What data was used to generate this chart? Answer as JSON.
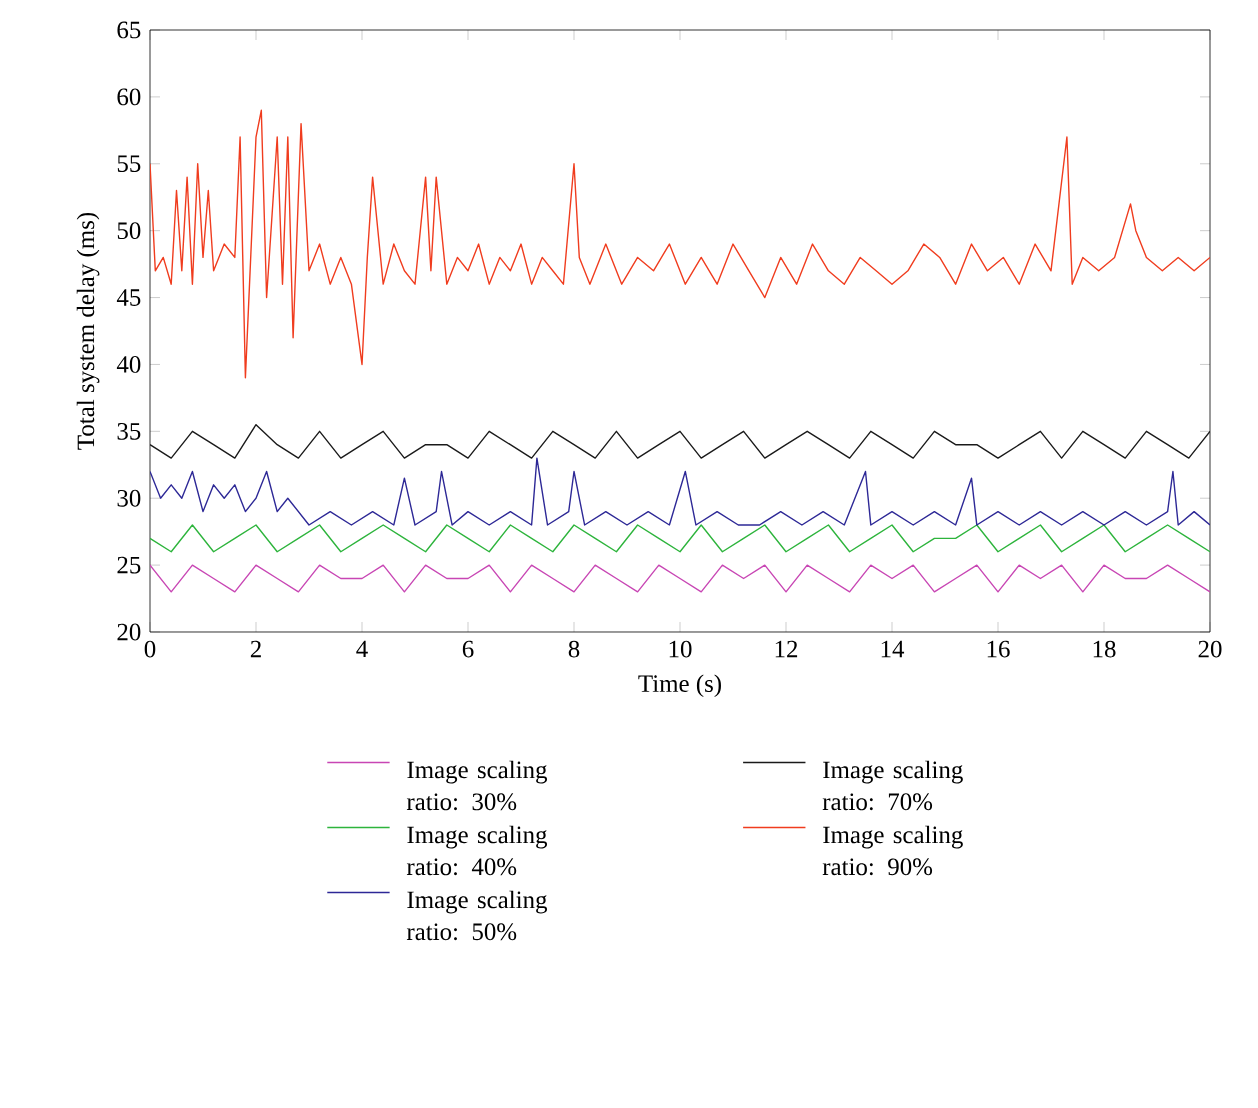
{
  "chart_data": {
    "type": "line",
    "xlabel": "Time (s)",
    "ylabel": "Total system delay (ms)",
    "xlim": [
      0,
      20
    ],
    "ylim": [
      20,
      65
    ],
    "xticks": [
      0,
      2,
      4,
      6,
      8,
      10,
      12,
      14,
      16,
      18,
      20
    ],
    "yticks": [
      20,
      25,
      30,
      35,
      40,
      45,
      50,
      55,
      60,
      65
    ],
    "grid": false,
    "legend": "bottom",
    "series": [
      {
        "name": "Image scaling ratio: 30%",
        "color": "#c846b4",
        "x": [
          0,
          0.4,
          0.8,
          1.2,
          1.6,
          2.0,
          2.4,
          2.8,
          3.2,
          3.6,
          4.0,
          4.4,
          4.8,
          5.2,
          5.6,
          6.0,
          6.4,
          6.8,
          7.2,
          7.6,
          8.0,
          8.4,
          8.8,
          9.2,
          9.6,
          10.0,
          10.4,
          10.8,
          11.2,
          11.6,
          12.0,
          12.4,
          12.8,
          13.2,
          13.6,
          14.0,
          14.4,
          14.8,
          15.2,
          15.6,
          16.0,
          16.4,
          16.8,
          17.2,
          17.6,
          18.0,
          18.4,
          18.8,
          19.2,
          19.6,
          20
        ],
        "values": [
          25,
          23,
          25,
          24,
          23,
          25,
          24,
          23,
          25,
          24,
          24,
          25,
          23,
          25,
          24,
          24,
          25,
          23,
          25,
          24,
          23,
          25,
          24,
          23,
          25,
          24,
          23,
          25,
          24,
          25,
          23,
          25,
          24,
          23,
          25,
          24,
          25,
          23,
          24,
          25,
          23,
          25,
          24,
          25,
          23,
          25,
          24,
          24,
          25,
          24,
          23
        ]
      },
      {
        "name": "Image scaling ratio: 40%",
        "color": "#2db43c",
        "x": [
          0,
          0.4,
          0.8,
          1.2,
          1.6,
          2.0,
          2.4,
          2.8,
          3.2,
          3.6,
          4.0,
          4.4,
          4.8,
          5.2,
          5.6,
          6.0,
          6.4,
          6.8,
          7.2,
          7.6,
          8.0,
          8.4,
          8.8,
          9.2,
          9.6,
          10.0,
          10.4,
          10.8,
          11.2,
          11.6,
          12.0,
          12.4,
          12.8,
          13.2,
          13.6,
          14.0,
          14.4,
          14.8,
          15.2,
          15.6,
          16.0,
          16.4,
          16.8,
          17.2,
          17.6,
          18.0,
          18.4,
          18.8,
          19.2,
          19.6,
          20
        ],
        "values": [
          27,
          26,
          28,
          26,
          27,
          28,
          26,
          27,
          28,
          26,
          27,
          28,
          27,
          26,
          28,
          27,
          26,
          28,
          27,
          26,
          28,
          27,
          26,
          28,
          27,
          26,
          28,
          26,
          27,
          28,
          26,
          27,
          28,
          26,
          27,
          28,
          26,
          27,
          27,
          28,
          26,
          27,
          28,
          26,
          27,
          28,
          26,
          27,
          28,
          27,
          26
        ]
      },
      {
        "name": "Image scaling ratio: 50%",
        "color": "#2d2896",
        "x": [
          0,
          0.2,
          0.4,
          0.6,
          0.8,
          1.0,
          1.2,
          1.4,
          1.6,
          1.8,
          2.0,
          2.2,
          2.4,
          2.6,
          3.0,
          3.4,
          3.8,
          4.2,
          4.6,
          4.8,
          5.0,
          5.4,
          5.5,
          5.7,
          6.0,
          6.4,
          6.8,
          7.2,
          7.3,
          7.5,
          7.9,
          8.0,
          8.2,
          8.6,
          9.0,
          9.4,
          9.8,
          10.1,
          10.3,
          10.7,
          11.1,
          11.5,
          11.9,
          12.3,
          12.7,
          13.1,
          13.5,
          13.6,
          14.0,
          14.4,
          14.8,
          15.2,
          15.5,
          15.6,
          16.0,
          16.4,
          16.8,
          17.2,
          17.6,
          18.0,
          18.4,
          18.8,
          19.2,
          19.3,
          19.4,
          19.7,
          20
        ],
        "values": [
          32,
          30,
          31,
          30,
          32,
          29,
          31,
          30,
          31,
          29,
          30,
          32,
          29,
          30,
          28,
          29,
          28,
          29,
          28,
          31.5,
          28,
          29,
          32,
          28,
          29,
          28,
          29,
          28,
          33,
          28,
          29,
          32,
          28,
          29,
          28,
          29,
          28,
          32,
          28,
          29,
          28,
          28,
          29,
          28,
          29,
          28,
          32,
          28,
          29,
          28,
          29,
          28,
          31.5,
          28,
          29,
          28,
          29,
          28,
          29,
          28,
          29,
          28,
          29,
          32,
          28,
          29,
          28
        ]
      },
      {
        "name": "Image scaling ratio: 70%",
        "color": "#1a1a1a",
        "x": [
          0,
          0.4,
          0.8,
          1.2,
          1.6,
          2.0,
          2.4,
          2.8,
          3.2,
          3.6,
          4.0,
          4.4,
          4.8,
          5.2,
          5.6,
          6.0,
          6.4,
          6.8,
          7.2,
          7.6,
          8.0,
          8.4,
          8.8,
          9.2,
          9.6,
          10.0,
          10.4,
          10.8,
          11.2,
          11.6,
          12.0,
          12.4,
          12.8,
          13.2,
          13.6,
          14.0,
          14.4,
          14.8,
          15.2,
          15.6,
          16.0,
          16.4,
          16.8,
          17.2,
          17.6,
          18.0,
          18.4,
          18.8,
          19.2,
          19.6,
          20
        ],
        "values": [
          34,
          33,
          35,
          34,
          33,
          35.5,
          34,
          33,
          35,
          33,
          34,
          35,
          33,
          34,
          34,
          33,
          35,
          34,
          33,
          35,
          34,
          33,
          35,
          33,
          34,
          35,
          33,
          34,
          35,
          33,
          34,
          35,
          34,
          33,
          35,
          34,
          33,
          35,
          34,
          34,
          33,
          34,
          35,
          33,
          35,
          34,
          33,
          35,
          34,
          33,
          35
        ]
      },
      {
        "name": "Image scaling ratio: 90%",
        "color": "#f03c1e",
        "x": [
          0,
          0.1,
          0.25,
          0.4,
          0.5,
          0.6,
          0.7,
          0.8,
          0.9,
          1.0,
          1.1,
          1.2,
          1.4,
          1.6,
          1.7,
          1.8,
          1.9,
          2.0,
          2.1,
          2.2,
          2.3,
          2.4,
          2.5,
          2.6,
          2.7,
          2.85,
          3.0,
          3.2,
          3.4,
          3.6,
          3.8,
          4.0,
          4.1,
          4.2,
          4.4,
          4.6,
          4.8,
          5.0,
          5.2,
          5.3,
          5.4,
          5.6,
          5.8,
          6.0,
          6.2,
          6.4,
          6.6,
          6.8,
          7.0,
          7.2,
          7.4,
          7.6,
          7.8,
          8.0,
          8.1,
          8.3,
          8.6,
          8.9,
          9.2,
          9.5,
          9.8,
          10.1,
          10.4,
          10.7,
          11.0,
          11.3,
          11.6,
          11.9,
          12.2,
          12.5,
          12.8,
          13.1,
          13.4,
          13.7,
          14.0,
          14.3,
          14.6,
          14.9,
          15.2,
          15.5,
          15.8,
          16.1,
          16.4,
          16.7,
          17.0,
          17.3,
          17.4,
          17.6,
          17.9,
          18.2,
          18.5,
          18.6,
          18.8,
          19.1,
          19.4,
          19.7,
          20
        ],
        "values": [
          55,
          47,
          48,
          46,
          53,
          47,
          54,
          46,
          55,
          48,
          53,
          47,
          49,
          48,
          57,
          39,
          48,
          57,
          59,
          45,
          51,
          57,
          46,
          57,
          42,
          58,
          47,
          49,
          46,
          48,
          46,
          40,
          48,
          54,
          46,
          49,
          47,
          46,
          54,
          47,
          54,
          46,
          48,
          47,
          49,
          46,
          48,
          47,
          49,
          46,
          48,
          47,
          46,
          55,
          48,
          46,
          49,
          46,
          48,
          47,
          49,
          46,
          48,
          46,
          49,
          47,
          45,
          48,
          46,
          49,
          47,
          46,
          48,
          47,
          46,
          47,
          49,
          48,
          46,
          49,
          47,
          48,
          46,
          49,
          47,
          57,
          46,
          48,
          47,
          48,
          52,
          50,
          48,
          47,
          48,
          47,
          48
        ]
      }
    ]
  }
}
